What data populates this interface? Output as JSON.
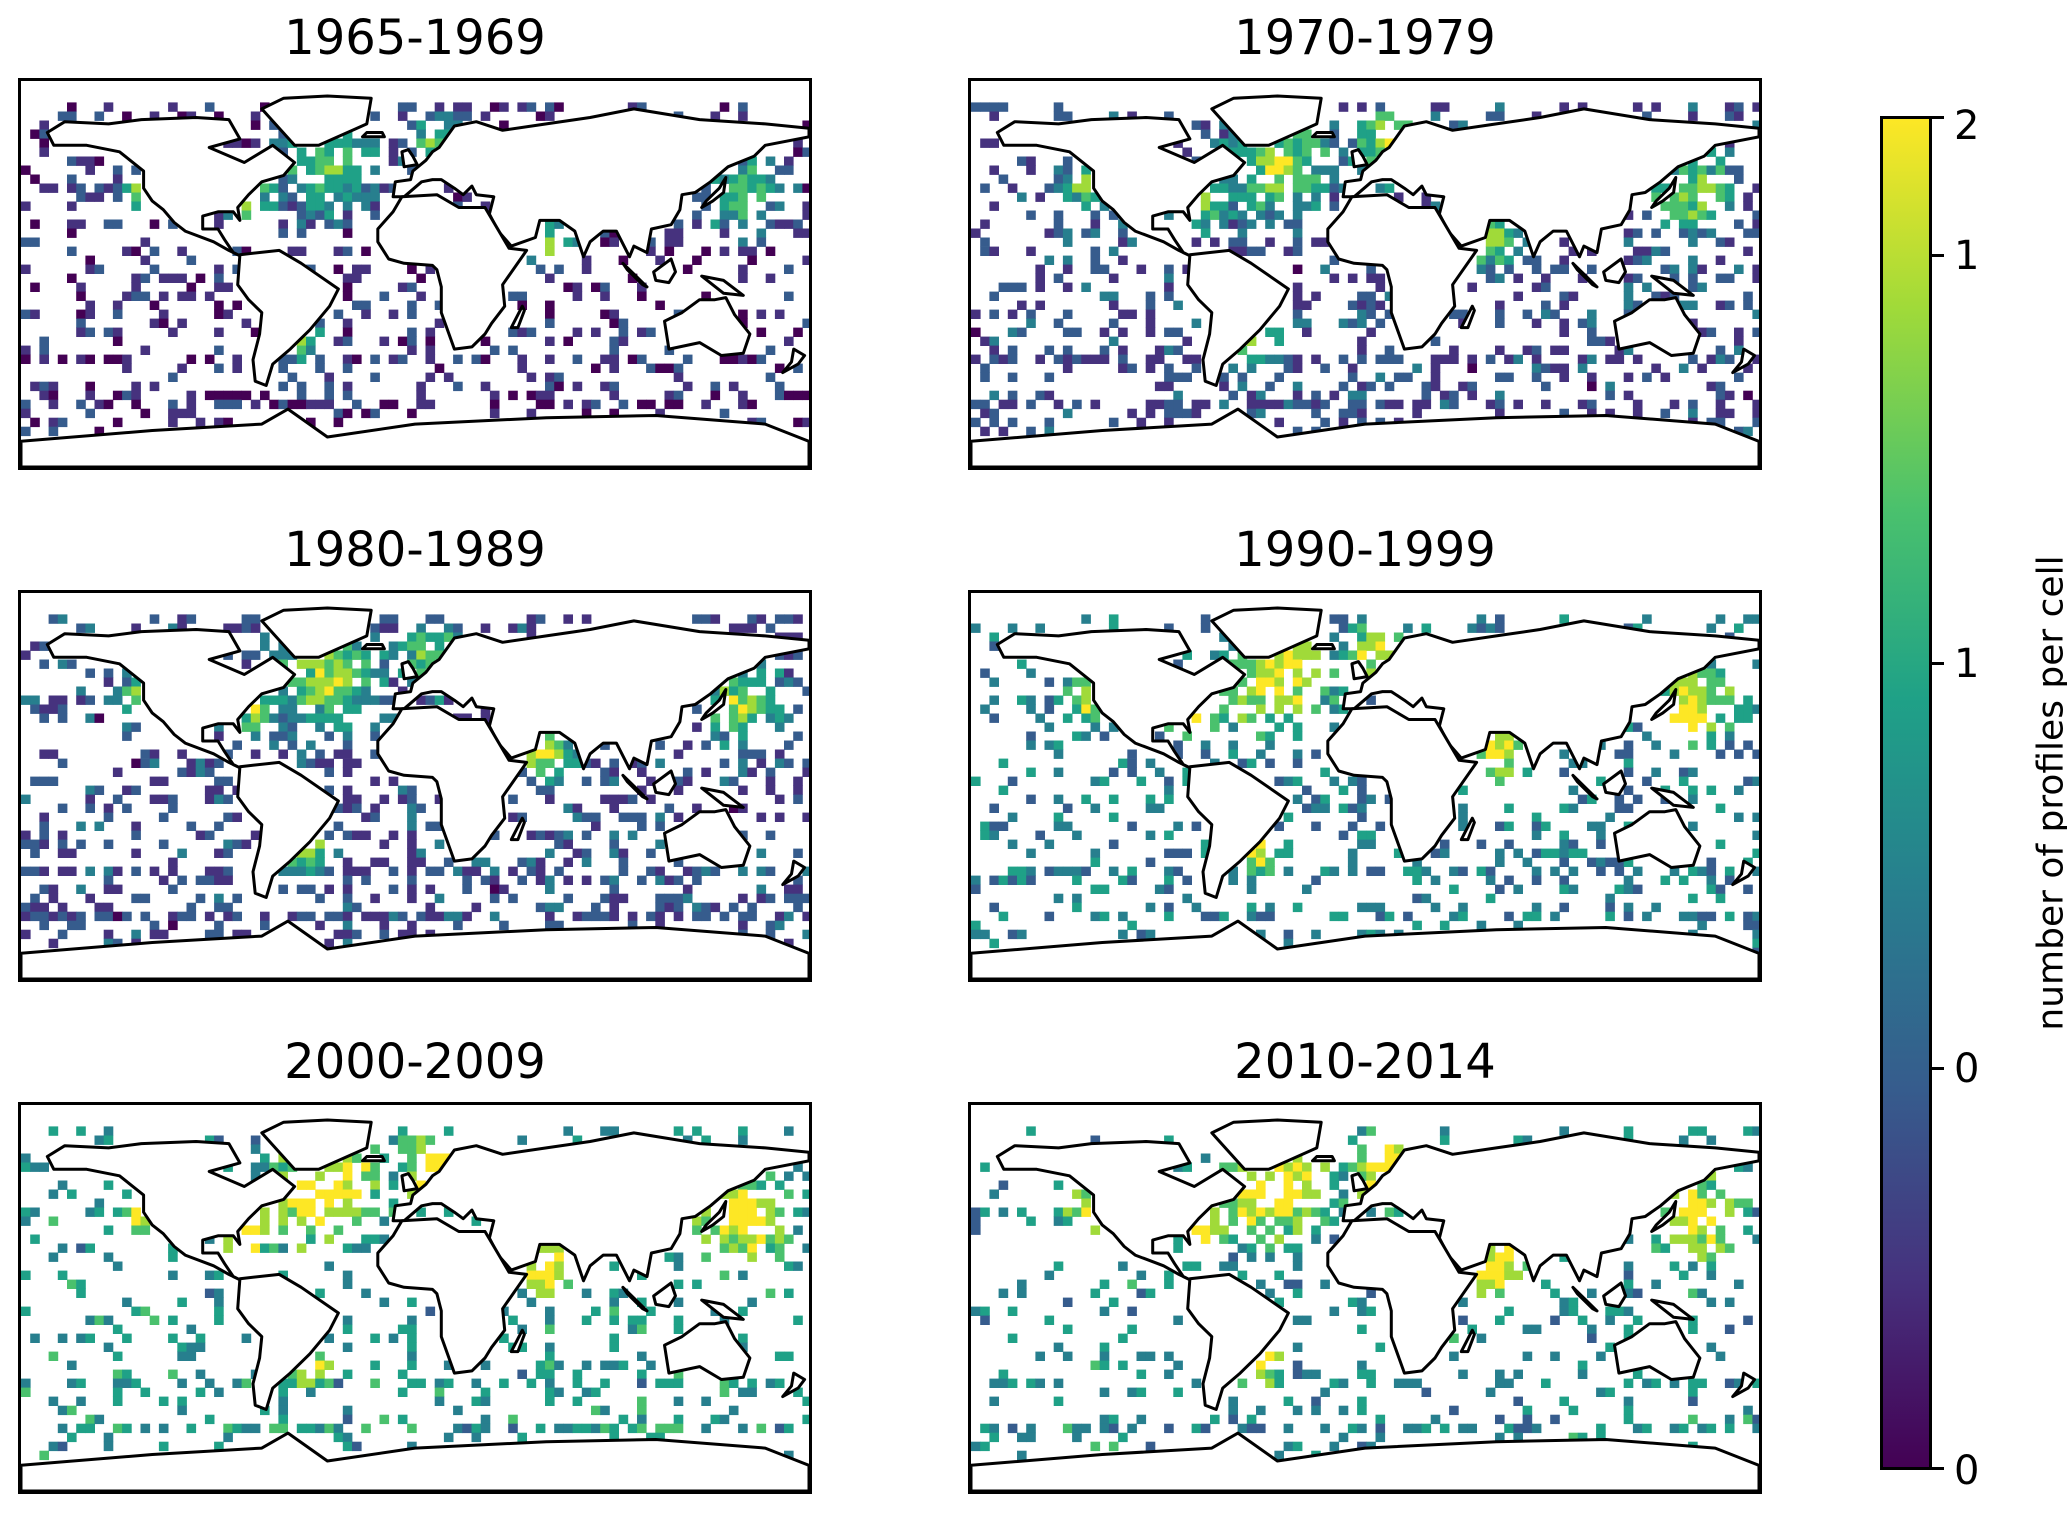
{
  "panels": [
    {
      "title": "1965-1969",
      "density": 0.55,
      "shift": 0.05
    },
    {
      "title": "1970-1979",
      "density": 0.7,
      "shift": 0.2
    },
    {
      "title": "1980-1989",
      "density": 0.75,
      "shift": 0.2
    },
    {
      "title": "1990-1999",
      "density": 0.5,
      "shift": 0.45
    },
    {
      "title": "2000-2009",
      "density": 0.4,
      "shift": 0.6
    },
    {
      "title": "2010-2014",
      "density": 0.35,
      "shift": 0.55
    }
  ],
  "colorbar": {
    "label": "number of profiles per cell",
    "ticks": [
      "2",
      "1",
      "1",
      "0",
      "0"
    ],
    "colormap": "viridis"
  },
  "colors": {
    "land": "#ffffff",
    "coastline": "#000000",
    "viridis": [
      "#440154",
      "#46327e",
      "#365c8d",
      "#277f8e",
      "#1fa187",
      "#4ac16d",
      "#a0da39",
      "#fde725"
    ]
  }
}
